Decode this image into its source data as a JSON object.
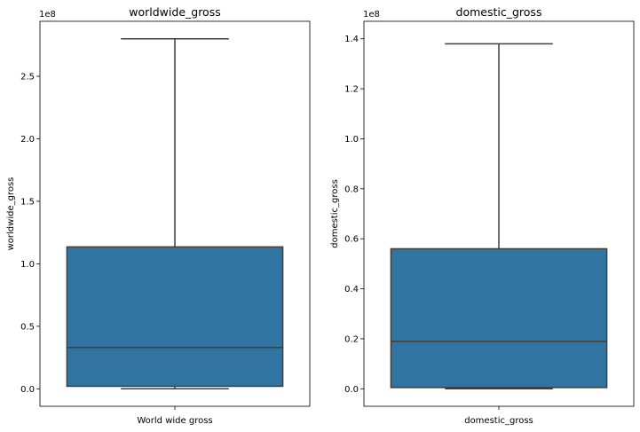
{
  "chart_data": [
    {
      "type": "box",
      "title": "worldwide_gross",
      "xlabel": "World wide gross",
      "ylabel": "worldwide_gross",
      "offset_text": "1e8",
      "ylim": [
        -0.14,
        2.94
      ],
      "yticks": [
        0.0,
        0.5,
        1.0,
        1.5,
        2.0,
        2.5
      ],
      "ytick_labels": [
        "0.0",
        "0.5",
        "1.0",
        "1.5",
        "2.0",
        "2.5"
      ],
      "stats": {
        "whislo": 0.0,
        "q1": 0.02,
        "med": 0.33,
        "q3": 1.135,
        "whishi": 2.8
      },
      "box_color": "#3274a1"
    },
    {
      "type": "box",
      "title": "domestic_gross",
      "xlabel": "domestic_gross",
      "ylabel": "domestic_gross",
      "offset_text": "1e8",
      "ylim": [
        -0.07,
        1.47
      ],
      "yticks": [
        0.0,
        0.2,
        0.4,
        0.6,
        0.8,
        1.0,
        1.2,
        1.4
      ],
      "ytick_labels": [
        "0.0",
        "0.2",
        "0.4",
        "0.6",
        "0.8",
        "1.0",
        "1.2",
        "1.4"
      ],
      "stats": {
        "whislo": 0.0,
        "q1": 0.005,
        "med": 0.19,
        "q3": 0.56,
        "whishi": 1.38
      },
      "box_color": "#3274a1"
    }
  ]
}
